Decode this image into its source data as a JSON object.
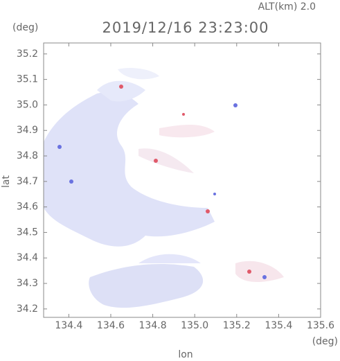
{
  "chart_data": {
    "type": "map",
    "title": "2019/12/16 23:23:00",
    "subtitle": "ALT(km) 2.0",
    "x_label": "lon",
    "x_unit": "(deg)",
    "y_label": "lat",
    "y_unit": "(deg)",
    "xlim": [
      134.28,
      135.6
    ],
    "xticks": [
      134.4,
      134.6,
      134.8,
      135.0,
      135.2,
      135.4,
      135.6
    ],
    "ylim": [
      34.167,
      35.243
    ],
    "yticks": [
      34.2,
      34.3,
      34.4,
      34.5,
      34.6,
      34.7,
      34.8,
      34.9,
      35.0,
      35.1,
      35.2
    ]
  }
}
